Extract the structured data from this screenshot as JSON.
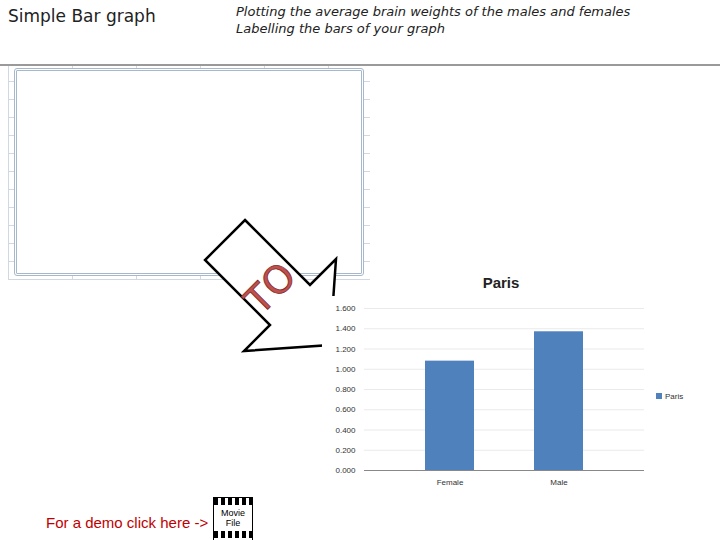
{
  "header": {
    "title": "Simple Bar graph",
    "subtitle": [
      "Plotting the average brain weights of the males and females",
      "Labelling the bars of your graph"
    ]
  },
  "arrow_label": "TO",
  "footer": {
    "text": "For a demo click here ->",
    "icon_label": [
      "Movie",
      "File"
    ]
  },
  "chart_data": {
    "type": "bar",
    "title": "Paris",
    "categories": [
      "Female",
      "Male"
    ],
    "series": [
      {
        "name": "Paris",
        "color": "#4f81bd",
        "values": [
          1.08,
          1.37
        ]
      }
    ],
    "ylim": [
      0,
      1.6
    ],
    "yticks": [
      {
        "value": 0,
        "label": "0.000"
      },
      {
        "value": 0.2,
        "label": "0.200"
      },
      {
        "value": 0.4,
        "label": "0.400"
      },
      {
        "value": 0.6,
        "label": "0.600"
      },
      {
        "value": 0.8,
        "label": "0.800"
      },
      {
        "value": 1.0,
        "label": "1.000"
      },
      {
        "value": 1.2,
        "label": "1.200"
      },
      {
        "value": 1.4,
        "label": "1.400"
      },
      {
        "value": 1.6,
        "label": "1.600"
      }
    ],
    "grid": true,
    "legend": "right"
  }
}
